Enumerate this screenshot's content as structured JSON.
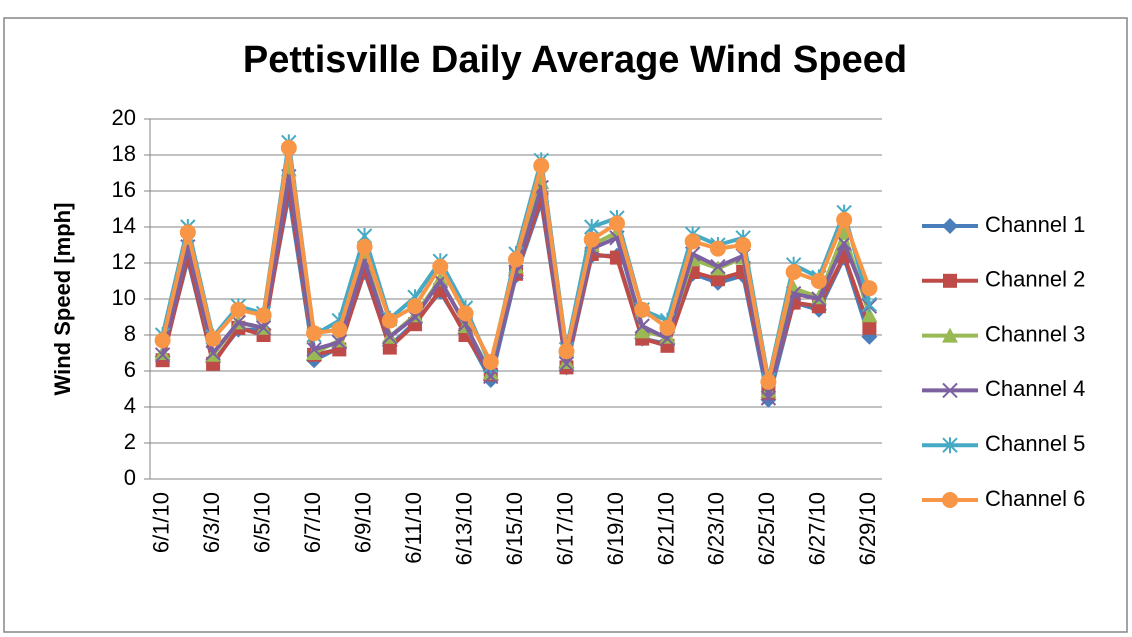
{
  "chart_data": {
    "type": "line",
    "title": "Pettisville Daily Average Wind Speed",
    "y_label": "Wind Speed [mph]",
    "categories": [
      "6/1/10",
      null,
      "6/3/10",
      null,
      "6/5/10",
      null,
      "6/7/10",
      null,
      "6/9/10",
      null,
      "6/11/10",
      null,
      "6/13/10",
      null,
      "6/15/10",
      null,
      "6/17/10",
      null,
      "6/19/10",
      null,
      "6/21/10",
      null,
      "6/23/10",
      null,
      "6/25/10",
      null,
      "6/27/10",
      null,
      "6/29/10"
    ],
    "ylim": [
      0,
      20
    ],
    "yticks": [
      0,
      2,
      4,
      6,
      8,
      10,
      12,
      14,
      16,
      18,
      20
    ],
    "grid": true,
    "legend": "right",
    "series": [
      {
        "name": "Channel 1",
        "color": "#4a7ebb",
        "marker": "diamond",
        "values": [
          6.8,
          12.2,
          6.5,
          8.3,
          8.3,
          15.8,
          6.6,
          7.3,
          11.5,
          7.4,
          8.7,
          10.4,
          8.1,
          5.5,
          11.3,
          15.4,
          6.2,
          12.4,
          12.4,
          7.8,
          7.5,
          11.4,
          10.9,
          11.3,
          4.4,
          9.8,
          9.4,
          12.3,
          7.9
        ]
      },
      {
        "name": "Channel 2",
        "color": "#be4b48",
        "marker": "square",
        "values": [
          6.6,
          12.4,
          6.4,
          8.4,
          8.0,
          16.2,
          6.9,
          7.2,
          11.6,
          7.3,
          8.6,
          10.5,
          8.0,
          5.8,
          11.4,
          15.6,
          6.2,
          12.5,
          12.3,
          7.8,
          7.4,
          11.5,
          11.1,
          11.5,
          4.8,
          9.8,
          9.6,
          12.4,
          8.4
        ]
      },
      {
        "name": "Channel 3",
        "color": "#98b954",
        "marker": "triangle",
        "values": [
          7.0,
          13.0,
          6.9,
          8.7,
          8.4,
          17.2,
          7.0,
          7.7,
          12.3,
          7.9,
          9.1,
          11.1,
          8.5,
          5.9,
          11.8,
          16.5,
          6.5,
          13.0,
          13.7,
          8.2,
          7.9,
          12.2,
          11.7,
          12.3,
          4.9,
          10.6,
          10.1,
          13.7,
          9.1
        ]
      },
      {
        "name": "Channel 4",
        "color": "#7d60a0",
        "marker": "x",
        "values": [
          6.9,
          12.9,
          7.0,
          8.7,
          8.4,
          16.8,
          7.2,
          7.6,
          12.1,
          7.9,
          9.0,
          11.0,
          8.6,
          5.7,
          11.5,
          16.2,
          6.4,
          12.8,
          13.4,
          8.5,
          7.8,
          12.5,
          11.8,
          12.4,
          4.5,
          10.3,
          10.0,
          13.1,
          9.6
        ]
      },
      {
        "name": "Channel 5",
        "color": "#46aac5",
        "marker": "star",
        "values": [
          8.0,
          14.0,
          7.9,
          9.6,
          9.2,
          18.7,
          8.0,
          8.8,
          13.5,
          8.9,
          10.1,
          12.1,
          9.5,
          6.3,
          12.5,
          17.7,
          7.2,
          14.0,
          14.5,
          9.4,
          8.8,
          13.6,
          13.0,
          13.4,
          5.5,
          11.9,
          11.2,
          14.8,
          9.7
        ]
      },
      {
        "name": "Channel 6",
        "color": "#f79646",
        "marker": "circle",
        "values": [
          7.7,
          13.7,
          7.8,
          9.4,
          9.1,
          18.4,
          8.1,
          8.3,
          12.9,
          8.8,
          9.6,
          11.8,
          9.2,
          6.5,
          12.2,
          17.4,
          7.1,
          13.3,
          14.2,
          9.4,
          8.4,
          13.2,
          12.8,
          13.0,
          5.4,
          11.5,
          11.0,
          14.4,
          10.6
        ]
      }
    ]
  }
}
